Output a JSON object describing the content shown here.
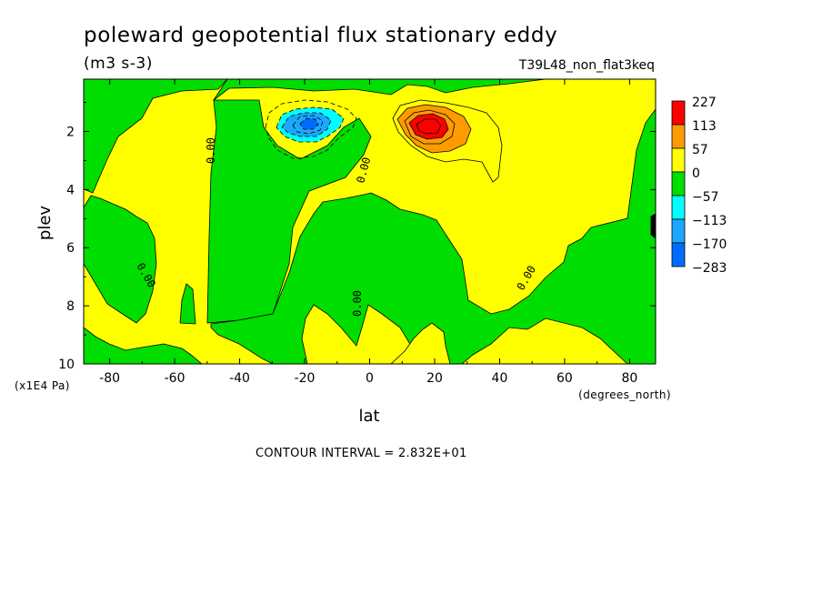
{
  "chart_data": {
    "type": "heatmap",
    "title": "poleward geopotential flux stationary eddy",
    "units": "(m3 s-3)",
    "experiment": "T39L48_non_flat3keq",
    "xlabel": "lat",
    "x_units": "(degrees_north)",
    "ylabel": "plev",
    "y_units": "(x1E4 Pa)",
    "xlim": [
      -88,
      88
    ],
    "ylim": [
      10,
      0.2
    ],
    "x_ticks": [
      -80,
      -60,
      -40,
      -20,
      0,
      20,
      40,
      60,
      80
    ],
    "y_ticks": [
      2,
      4,
      6,
      8,
      10
    ],
    "x_tick_labels": [
      "-80",
      "-60",
      "-40",
      "-20",
      "0",
      "20",
      "40",
      "60",
      "80"
    ],
    "y_tick_labels": [
      "2",
      "4",
      "6",
      "8",
      "10"
    ],
    "contour_interval": "CONTOUR INTERVAL = 2.832E+01",
    "contour_labels": [
      "0.00",
      "0.00",
      "0.00",
      "0.00",
      "0.00"
    ],
    "legend": {
      "placement": "right",
      "levels": [
        "227",
        "113",
        "57",
        "0",
        "-57",
        "-113",
        "-170",
        "-283"
      ],
      "colors": [
        "#ff0000",
        "#ff9b00",
        "#ffff00",
        "#00dd00",
        "#00ffff",
        "#1ba8ff",
        "#006cff"
      ]
    },
    "features": [
      {
        "type": "max",
        "lat": 18,
        "plev": 1.7,
        "value": 227
      },
      {
        "type": "min",
        "lat": -18,
        "plev": 1.6,
        "value": -170
      }
    ]
  }
}
